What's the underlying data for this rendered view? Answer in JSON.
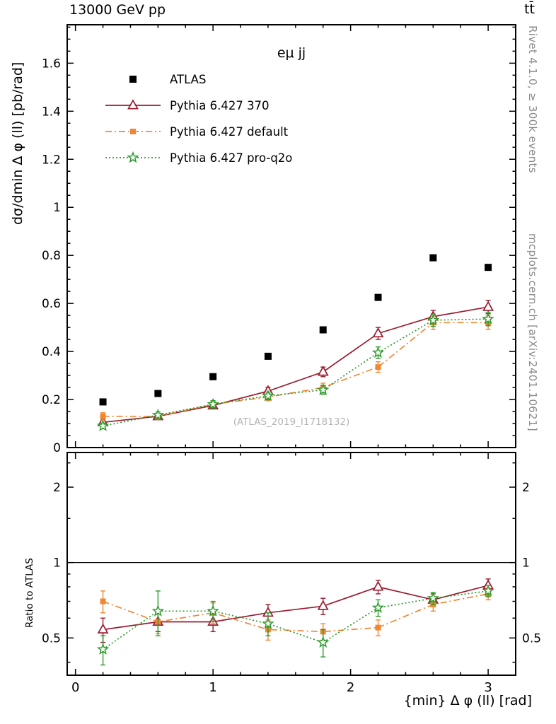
{
  "chart_data": {
    "type": "line",
    "title": "13000 GeV pp",
    "title_right": "tt̄",
    "subtitle": "eμ jj",
    "annotation": "(ATLAS_2019_I1718132)",
    "xlabel": "{min} Δ φ (ll) [rad]",
    "ylabel": "dσ/dmin Δ φ (ll) [pb/rad]",
    "ylabel_ratio": "Ratio to ATLAS",
    "legend_position": "top-left",
    "x": [
      0.2,
      0.6,
      1.0,
      1.4,
      1.8,
      2.2,
      2.6,
      3.0
    ],
    "series": [
      {
        "name": "ATLAS",
        "color": "#000000",
        "line": "none",
        "marker": "square",
        "marker_size": 10,
        "values": [
          0.19,
          0.225,
          0.295,
          0.38,
          0.49,
          0.625,
          0.79,
          0.75
        ],
        "yerr": [
          0,
          0,
          0,
          0,
          0,
          0,
          0,
          0
        ]
      },
      {
        "name": "Pythia 6.427 370",
        "color": "#9a1b2e",
        "line": "solid",
        "marker": "triangle-open",
        "marker_size": 13,
        "values": [
          0.105,
          0.13,
          0.175,
          0.235,
          0.315,
          0.475,
          0.545,
          0.585
        ],
        "yerr": [
          0.012,
          0.012,
          0.014,
          0.016,
          0.02,
          0.025,
          0.026,
          0.028
        ],
        "ratio_values": [
          0.54,
          0.58,
          0.58,
          0.63,
          0.67,
          0.8,
          0.71,
          0.81
        ],
        "ratio_err": [
          0.06,
          0.05,
          0.05,
          0.05,
          0.05,
          0.05,
          0.04,
          0.05
        ]
      },
      {
        "name": "Pythia 6.427 default",
        "color": "#ef8733",
        "line": "dashdot",
        "marker": "square",
        "marker_size": 8,
        "values": [
          0.13,
          0.13,
          0.18,
          0.21,
          0.25,
          0.335,
          0.52,
          0.52
        ],
        "yerr": [
          0.015,
          0.012,
          0.015,
          0.015,
          0.018,
          0.022,
          0.028,
          0.028
        ],
        "ratio_values": [
          0.7,
          0.58,
          0.63,
          0.54,
          0.53,
          0.55,
          0.68,
          0.75
        ],
        "ratio_err": [
          0.07,
          0.06,
          0.06,
          0.05,
          0.04,
          0.04,
          0.04,
          0.04
        ]
      },
      {
        "name": "Pythia 6.427 pro-q2o",
        "color": "#2e9b2e",
        "line": "dotted",
        "marker": "star-open",
        "marker_size": 14,
        "values": [
          0.09,
          0.135,
          0.18,
          0.215,
          0.24,
          0.395,
          0.53,
          0.535
        ],
        "yerr": [
          0.012,
          0.013,
          0.015,
          0.016,
          0.018,
          0.024,
          0.026,
          0.028
        ],
        "ratio_values": [
          0.45,
          0.64,
          0.64,
          0.57,
          0.48,
          0.66,
          0.72,
          0.77
        ],
        "ratio_err": [
          0.06,
          0.13,
          0.06,
          0.06,
          0.06,
          0.05,
          0.04,
          0.04
        ]
      }
    ],
    "axes": {
      "xmin": -0.06,
      "xmax": 3.2,
      "ymin": 0,
      "ymax": 1.76,
      "x_major": [
        0,
        1,
        2,
        3
      ],
      "x_major_labels": [
        "0",
        "1",
        "2",
        "3"
      ],
      "x_minor_step": 0.2,
      "y_major": [
        0,
        0.2,
        0.4,
        0.6,
        0.8,
        1.0,
        1.2,
        1.4,
        1.6
      ],
      "y_major_labels": [
        "0",
        "0.2",
        "0.4",
        "0.6",
        "0.8",
        "1",
        "1.2",
        "1.4",
        "1.6"
      ],
      "y_minor_step": 0.05,
      "ratio_min": 0.355,
      "ratio_max": 2.75,
      "ratio_major": [
        0.5,
        1,
        2
      ],
      "ratio_major_labels": [
        "0.5",
        "1",
        "2"
      ],
      "ratio_minor": [
        0.4,
        0.6,
        0.7,
        0.8,
        0.9,
        1.5,
        2.5
      ],
      "ratio_ref": 1
    }
  },
  "right_margin": {
    "top": "Rivet 4.1.0, ≥ 300k events",
    "bottom": "mcplots.cern.ch [arXiv:2401.10621]"
  }
}
